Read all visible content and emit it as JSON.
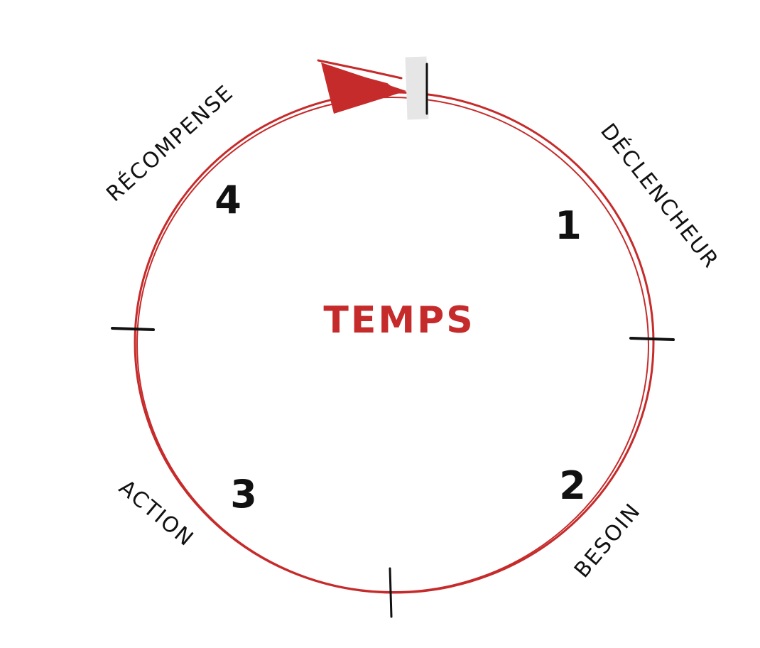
{
  "diagram": {
    "center_label": "TEMPS",
    "steps": [
      {
        "number": "1",
        "label": "DÉCLENCHEUR"
      },
      {
        "number": "2",
        "label": "BESOIN"
      },
      {
        "number": "3",
        "label": "ACTION"
      },
      {
        "number": "4",
        "label": "RÉCOMPENSE"
      }
    ]
  },
  "colors": {
    "accent": "#c62b2b",
    "ink": "#111111",
    "marker": "#e6e6e6"
  }
}
